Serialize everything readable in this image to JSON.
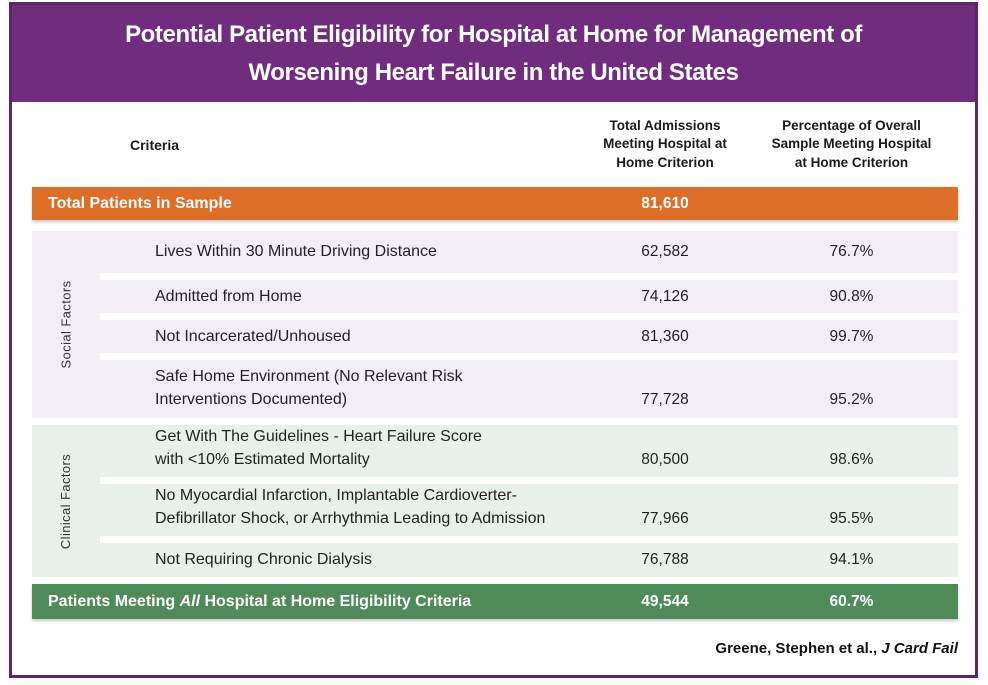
{
  "title": {
    "text": "Potential Patient Eligibility for Hospital at Home for Management of\nWorsening Heart Failure in the United States"
  },
  "columns": {
    "criteria": "Criteria",
    "total": "Total Admissions\nMeeting Hospital at\nHome Criterion",
    "percent": "Percentage of Overall\nSample Meeting Hospital\nat Home Criterion"
  },
  "total_row": {
    "label": "Total Patients in Sample",
    "value": "81,610"
  },
  "sections": [
    {
      "label": "Social Factors",
      "rows": [
        {
          "criteria": "Lives Within 30 Minute Driving Distance",
          "value": "62,582",
          "percent": "76.7%"
        },
        {
          "criteria": "Admitted from Home",
          "value": "74,126",
          "percent": "90.8%"
        },
        {
          "criteria": "Not Incarcerated/Unhoused",
          "value": "81,360",
          "percent": "99.7%"
        },
        {
          "criteria": "Safe Home Environment (No Relevant Risk\nInterventions Documented)",
          "value": "77,728",
          "percent": "95.2%"
        }
      ]
    },
    {
      "label": "Clinical Factors",
      "rows": [
        {
          "criteria": "Get With The Guidelines - Heart Failure Score\nwith <10% Estimated Mortality",
          "value": "80,500",
          "percent": "98.6%"
        },
        {
          "criteria": "No Myocardial Infarction, Implantable Cardioverter-\nDefibrillator Shock, or Arrhythmia Leading to Admission",
          "value": "77,966",
          "percent": "95.5%"
        },
        {
          "criteria": "Not Requiring Chronic Dialysis",
          "value": "76,788",
          "percent": "94.1%"
        }
      ]
    }
  ],
  "final_row": {
    "label_pre": "Patients Meeting ",
    "label_italic": "All",
    "label_post": " Hospital at Home Eligibility Criteria",
    "value": "49,544",
    "percent": "60.7%"
  },
  "footer": {
    "citation_pre": "Greene, Stephen et al., ",
    "citation_italic": "J Card Fail"
  },
  "colors": {
    "banner_purple": "#702d7e",
    "frame_purple": "#5d2765",
    "orange": "#dc6e28",
    "green": "#4f8b58",
    "social_bg": "#f3eef5",
    "clinical_bg": "#e9f0e9"
  },
  "chart_data": {
    "type": "table",
    "title": "Potential Patient Eligibility for Hospital at Home for Management of Worsening Heart Failure in the United States",
    "columns": [
      "Criteria",
      "Total Admissions Meeting Hospital at Home Criterion",
      "Percentage of Overall Sample Meeting Hospital at Home Criterion"
    ],
    "total_patients_in_sample": 81610,
    "rows": [
      {
        "group": "Social Factors",
        "criteria": "Lives Within 30 Minute Driving Distance",
        "total_admissions": 62582,
        "percentage": 76.7
      },
      {
        "group": "Social Factors",
        "criteria": "Admitted from Home",
        "total_admissions": 74126,
        "percentage": 90.8
      },
      {
        "group": "Social Factors",
        "criteria": "Not Incarcerated/Unhoused",
        "total_admissions": 81360,
        "percentage": 99.7
      },
      {
        "group": "Social Factors",
        "criteria": "Safe Home Environment (No Relevant Risk Interventions Documented)",
        "total_admissions": 77728,
        "percentage": 95.2
      },
      {
        "group": "Clinical Factors",
        "criteria": "Get With The Guidelines - Heart Failure Score with <10% Estimated Mortality",
        "total_admissions": 80500,
        "percentage": 98.6
      },
      {
        "group": "Clinical Factors",
        "criteria": "No Myocardial Infarction, Implantable Cardioverter-Defibrillator Shock, or Arrhythmia Leading to Admission",
        "total_admissions": 77966,
        "percentage": 95.5
      },
      {
        "group": "Clinical Factors",
        "criteria": "Not Requiring Chronic Dialysis",
        "total_admissions": 76788,
        "percentage": 94.1
      },
      {
        "group": "Summary",
        "criteria": "Patients Meeting All Hospital at Home Eligibility Criteria",
        "total_admissions": 49544,
        "percentage": 60.7
      }
    ],
    "source": "Greene, Stephen et al., J Card Fail"
  }
}
